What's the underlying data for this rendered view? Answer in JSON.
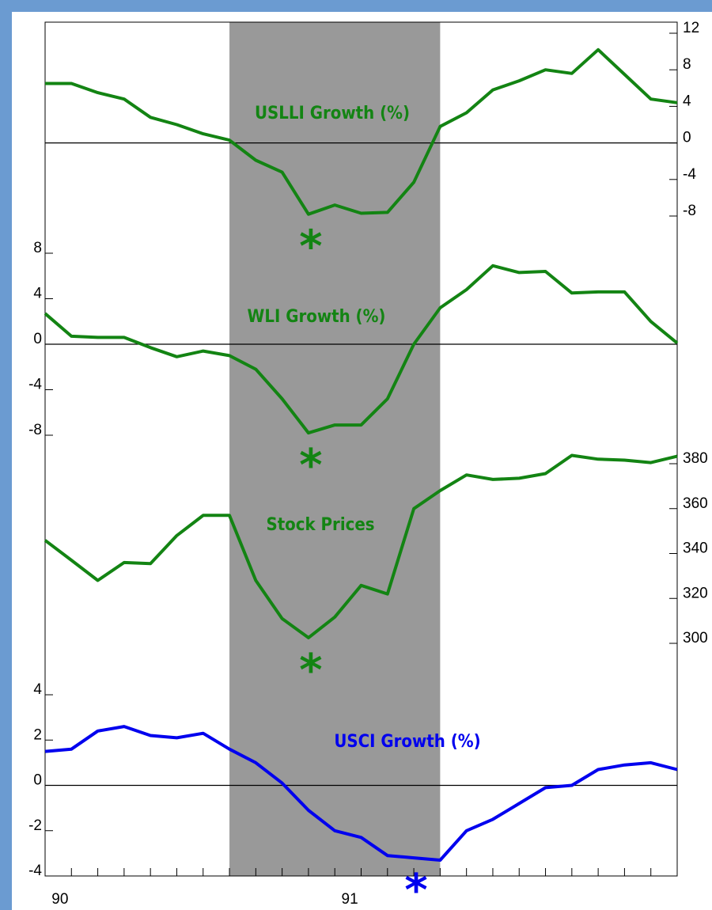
{
  "chart_data": {
    "type": "line",
    "categories": [
      null,
      "90",
      null,
      null,
      null,
      null,
      null,
      null,
      null,
      null,
      null,
      null,
      "91",
      null,
      null,
      null,
      null,
      null,
      null,
      null,
      null,
      null,
      null,
      null,
      null
    ],
    "recession": {
      "from": 7,
      "to": 15,
      "color": "#999999"
    },
    "series": [
      {
        "name": "USLLI Growth (%)",
        "color": "#138413",
        "axis": "right",
        "zero_line": true,
        "values": [
          6.5,
          6.5,
          5.5,
          4.8,
          2.8,
          2.0,
          1.0,
          0.3,
          -1.9,
          -3.2,
          -7.8,
          -6.8,
          -7.7,
          -7.6,
          -4.3,
          1.8,
          3.3,
          5.8,
          6.8,
          8.0,
          7.6,
          10.2,
          7.5,
          4.8,
          4.4
        ],
        "ylim": [
          -8,
          12
        ],
        "yticks": [
          12,
          8,
          4,
          0,
          -4,
          -8
        ],
        "trough": {
          "index": 10,
          "label": "*"
        }
      },
      {
        "name": "WLI Growth (%)",
        "color": "#138413",
        "axis": "left",
        "zero_line": true,
        "values": [
          2.7,
          0.7,
          0.6,
          0.6,
          -0.3,
          -1.1,
          -0.6,
          -1.0,
          -2.2,
          -4.8,
          -7.8,
          -7.1,
          -7.1,
          -4.8,
          0.0,
          3.2,
          4.8,
          6.9,
          6.3,
          6.4,
          4.5,
          4.6,
          4.6,
          2.0,
          0.1
        ],
        "ylim": [
          -8,
          8
        ],
        "yticks": [
          8,
          4,
          0,
          -4,
          -8
        ],
        "trough": {
          "index": 10,
          "label": "*"
        }
      },
      {
        "name": "Stock Prices",
        "color": "#138413",
        "axis": "right",
        "zero_line": false,
        "values": [
          345.9,
          337,
          328,
          336,
          335.5,
          348,
          357,
          357,
          328,
          311,
          302.5,
          311.7,
          325.8,
          322,
          360,
          368,
          375,
          373,
          373.5,
          375.6,
          383.7,
          382,
          381.6,
          380.5,
          383.3
        ],
        "ylim": [
          300,
          380
        ],
        "yticks": [
          380,
          360,
          340,
          320,
          300
        ],
        "trough": {
          "index": 10,
          "label": "*"
        }
      },
      {
        "name": "USCI Growth (%)",
        "color": "#0000ee",
        "axis": "left",
        "zero_line": true,
        "values": [
          1.5,
          1.6,
          2.4,
          2.6,
          2.2,
          2.1,
          2.3,
          1.6,
          1.0,
          0.1,
          -1.1,
          -2.0,
          -2.3,
          -3.1,
          -3.2,
          -3.3,
          -2.0,
          -1.5,
          -0.8,
          -0.1,
          0.0,
          0.7,
          0.9,
          1.0,
          0.7
        ],
        "ylim": [
          -4,
          4
        ],
        "yticks": [
          4,
          2,
          0,
          -2,
          -4
        ],
        "trough": {
          "index": 14,
          "label": "*"
        }
      }
    ]
  }
}
